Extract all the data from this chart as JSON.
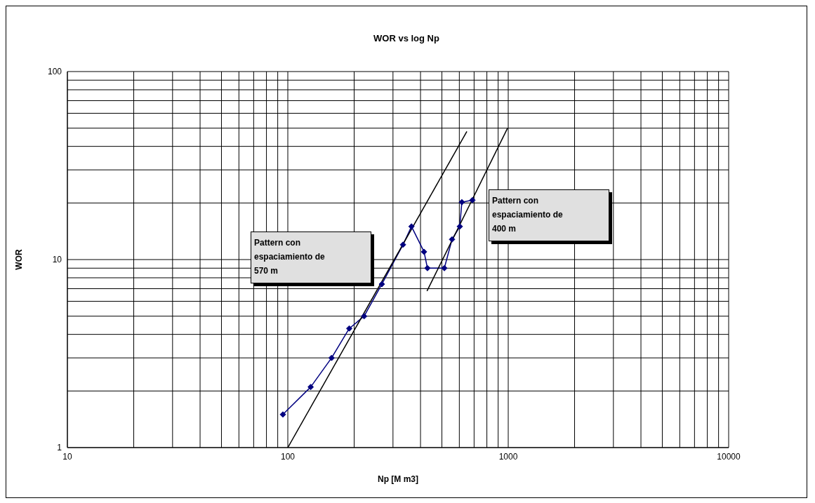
{
  "chart_data": {
    "type": "line",
    "title": "WOR vs log Np",
    "xlabel": "Np [M m3]",
    "ylabel": "WOR",
    "log": "xy",
    "grid": true,
    "xlim": [
      10,
      10000
    ],
    "ylim": [
      1,
      100
    ],
    "xticks": [
      10,
      {
        "value": 20,
        "label": null
      },
      {
        "value": 30,
        "label": null
      },
      {
        "value": 40,
        "label": null
      },
      {
        "value": 50,
        "label": null
      },
      {
        "value": 60,
        "label": null
      },
      {
        "value": 70,
        "label": null
      },
      {
        "value": 80,
        "label": null
      },
      {
        "value": 90,
        "label": null
      },
      100,
      {
        "value": 200,
        "label": null
      },
      {
        "value": 300,
        "label": null
      },
      {
        "value": 400,
        "label": null
      },
      {
        "value": 500,
        "label": null
      },
      {
        "value": 600,
        "label": null
      },
      {
        "value": 700,
        "label": null
      },
      {
        "value": 800,
        "label": null
      },
      {
        "value": 900,
        "label": null
      },
      1000,
      {
        "value": 2000,
        "label": null
      },
      {
        "value": 3000,
        "label": null
      },
      {
        "value": 4000,
        "label": null
      },
      {
        "value": 5000,
        "label": null
      },
      {
        "value": 6000,
        "label": null
      },
      {
        "value": 7000,
        "label": null
      },
      {
        "value": 8000,
        "label": null
      },
      {
        "value": 9000,
        "label": null
      },
      10000
    ],
    "yticks": [
      1,
      {
        "value": 2,
        "label": null
      },
      {
        "value": 3,
        "label": null
      },
      {
        "value": 4,
        "label": null
      },
      {
        "value": 5,
        "label": null
      },
      {
        "value": 6,
        "label": null
      },
      {
        "value": 7,
        "label": null
      },
      {
        "value": 8,
        "label": null
      },
      {
        "value": 9,
        "label": null
      },
      10,
      {
        "value": 20,
        "label": null
      },
      {
        "value": 30,
        "label": null
      },
      {
        "value": 40,
        "label": null
      },
      {
        "value": 50,
        "label": null
      },
      {
        "value": 60,
        "label": null
      },
      {
        "value": 70,
        "label": null
      },
      {
        "value": 80,
        "label": null
      },
      {
        "value": 90,
        "label": null
      },
      100
    ],
    "series": [
      {
        "color": "#000080",
        "marker": "diamond",
        "x": [
          95,
          127,
          158,
          190,
          222,
          267,
          333,
          364,
          415,
          430,
          513,
          556,
          603,
          616,
          688
        ],
        "values": [
          1.5,
          2.1,
          3.0,
          4.3,
          5.0,
          7.4,
          12,
          15,
          11,
          9,
          9,
          12.8,
          15,
          20.2,
          20.7
        ]
      },
      {
        "color": "#000000",
        "marker": "none",
        "x": [
          100,
          649
        ],
        "values": [
          1,
          48
        ]
      },
      {
        "color": "#000000",
        "marker": "none",
        "x": [
          428,
          993
        ],
        "values": [
          6.8,
          50
        ]
      }
    ],
    "annotations": [
      "Pattern con\nespaciamiento de\n570 m",
      "Pattern con\nespaciamiento de\n400 m"
    ]
  }
}
